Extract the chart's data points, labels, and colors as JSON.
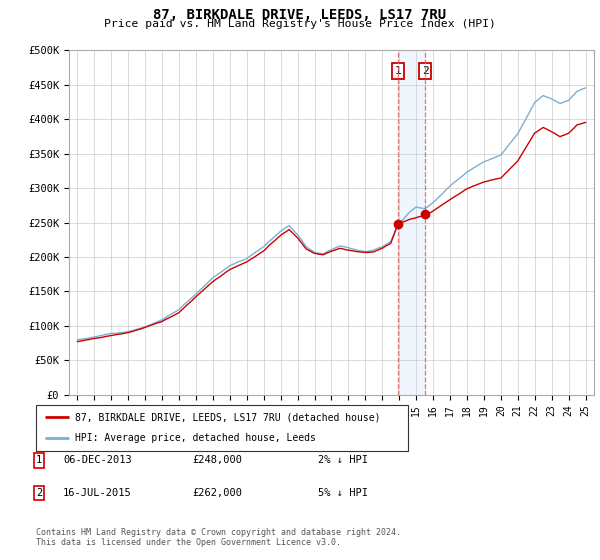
{
  "title": "87, BIRKDALE DRIVE, LEEDS, LS17 7RU",
  "subtitle": "Price paid vs. HM Land Registry's House Price Index (HPI)",
  "legend_line1": "87, BIRKDALE DRIVE, LEEDS, LS17 7RU (detached house)",
  "legend_line2": "HPI: Average price, detached house, Leeds",
  "transaction1_date": "06-DEC-2013",
  "transaction1_price": 248000,
  "transaction1_label": "2% ↓ HPI",
  "transaction1_x": 2013.92,
  "transaction2_date": "16-JUL-2015",
  "transaction2_price": 262000,
  "transaction2_label": "5% ↓ HPI",
  "transaction2_x": 2015.54,
  "footer": "Contains HM Land Registry data © Crown copyright and database right 2024.\nThis data is licensed under the Open Government Licence v3.0.",
  "red_color": "#cc0000",
  "blue_color": "#7ab0d4",
  "ylim": [
    0,
    500000
  ],
  "xlim": [
    1994.5,
    2025.5
  ],
  "hpi_anchors": [
    [
      1995.0,
      80000
    ],
    [
      1996.0,
      84000
    ],
    [
      1997.0,
      89000
    ],
    [
      1998.0,
      93000
    ],
    [
      1999.0,
      100000
    ],
    [
      2000.0,
      110000
    ],
    [
      2001.0,
      125000
    ],
    [
      2002.0,
      148000
    ],
    [
      2003.0,
      172000
    ],
    [
      2004.0,
      190000
    ],
    [
      2005.0,
      200000
    ],
    [
      2006.0,
      218000
    ],
    [
      2007.0,
      240000
    ],
    [
      2007.5,
      248000
    ],
    [
      2008.0,
      235000
    ],
    [
      2008.5,
      218000
    ],
    [
      2009.0,
      210000
    ],
    [
      2009.5,
      208000
    ],
    [
      2010.0,
      215000
    ],
    [
      2010.5,
      220000
    ],
    [
      2011.0,
      218000
    ],
    [
      2011.5,
      215000
    ],
    [
      2012.0,
      213000
    ],
    [
      2012.5,
      215000
    ],
    [
      2013.0,
      220000
    ],
    [
      2013.5,
      228000
    ],
    [
      2013.92,
      252000
    ],
    [
      2014.5,
      268000
    ],
    [
      2015.0,
      278000
    ],
    [
      2015.54,
      276000
    ],
    [
      2016.0,
      285000
    ],
    [
      2017.0,
      310000
    ],
    [
      2018.0,
      330000
    ],
    [
      2019.0,
      345000
    ],
    [
      2020.0,
      355000
    ],
    [
      2021.0,
      385000
    ],
    [
      2022.0,
      430000
    ],
    [
      2022.5,
      440000
    ],
    [
      2023.0,
      435000
    ],
    [
      2023.5,
      428000
    ],
    [
      2024.0,
      432000
    ],
    [
      2024.5,
      445000
    ],
    [
      2025.0,
      450000
    ]
  ],
  "red_anchors": [
    [
      1995.0,
      77000
    ],
    [
      1996.0,
      82000
    ],
    [
      1997.0,
      87000
    ],
    [
      1998.0,
      91000
    ],
    [
      1999.0,
      98000
    ],
    [
      2000.0,
      107000
    ],
    [
      2001.0,
      120000
    ],
    [
      2002.0,
      143000
    ],
    [
      2003.0,
      165000
    ],
    [
      2004.0,
      183000
    ],
    [
      2005.0,
      194000
    ],
    [
      2006.0,
      210000
    ],
    [
      2007.0,
      232000
    ],
    [
      2007.5,
      240000
    ],
    [
      2008.0,
      228000
    ],
    [
      2008.5,
      212000
    ],
    [
      2009.0,
      205000
    ],
    [
      2009.5,
      203000
    ],
    [
      2010.0,
      208000
    ],
    [
      2010.5,
      212000
    ],
    [
      2011.0,
      210000
    ],
    [
      2011.5,
      208000
    ],
    [
      2012.0,
      207000
    ],
    [
      2012.5,
      208000
    ],
    [
      2013.0,
      213000
    ],
    [
      2013.5,
      220000
    ],
    [
      2013.92,
      248000
    ],
    [
      2014.5,
      254000
    ],
    [
      2015.0,
      258000
    ],
    [
      2015.54,
      262000
    ],
    [
      2016.0,
      268000
    ],
    [
      2017.0,
      285000
    ],
    [
      2018.0,
      300000
    ],
    [
      2019.0,
      310000
    ],
    [
      2020.0,
      315000
    ],
    [
      2021.0,
      340000
    ],
    [
      2022.0,
      380000
    ],
    [
      2022.5,
      388000
    ],
    [
      2023.0,
      382000
    ],
    [
      2023.5,
      375000
    ],
    [
      2024.0,
      380000
    ],
    [
      2024.5,
      392000
    ],
    [
      2025.0,
      395000
    ]
  ]
}
